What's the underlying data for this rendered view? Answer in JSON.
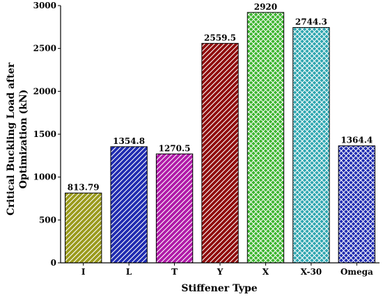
{
  "chart_data": {
    "type": "bar",
    "title": "",
    "xlabel": "Stiffener Type",
    "ylabel_lines": [
      "Critical Buckling Load after",
      "Optimization (kN)"
    ],
    "categories": [
      "I",
      "L",
      "T",
      "Y",
      "X",
      "X-30",
      "Omega"
    ],
    "values": [
      813.79,
      1354.8,
      1270.5,
      2559.5,
      2920,
      2744.3,
      1364.4
    ],
    "value_labels": [
      "813.79",
      "1354.8",
      "1270.5",
      "2559.5",
      "2920",
      "2744.3",
      "1364.4"
    ],
    "ylim": [
      0,
      3000
    ],
    "yticks": [
      0,
      500,
      1000,
      1500,
      2000,
      2500,
      3000
    ],
    "grid": false,
    "bar_colors": [
      "#9a9a1c",
      "#1f2bb0",
      "#b01aa8",
      "#8f0d0d",
      "#3cb52e",
      "#2ea6b0",
      "#1f2bb0"
    ],
    "bar_patterns": [
      "diag",
      "diag",
      "diag",
      "diag",
      "cross",
      "cross",
      "cross"
    ]
  }
}
